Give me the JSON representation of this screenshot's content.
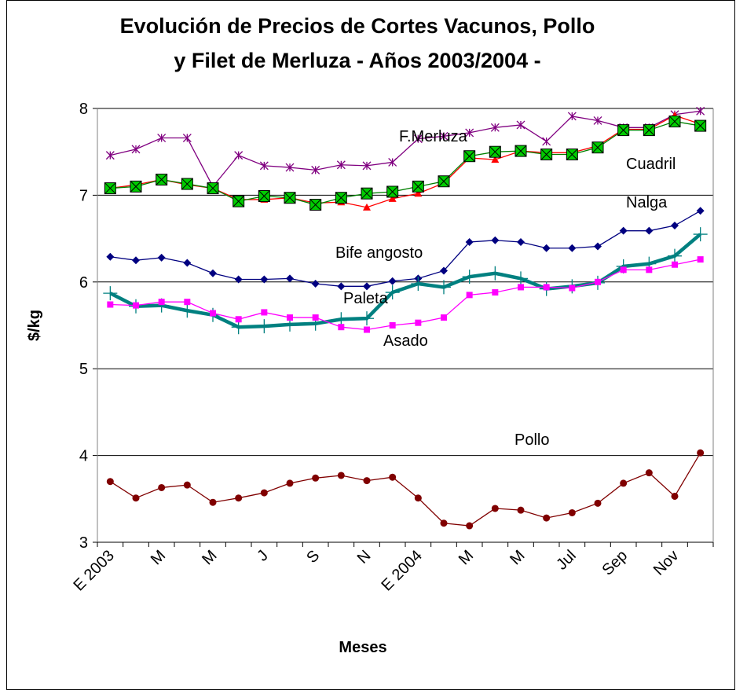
{
  "chart_data": {
    "type": "line",
    "title": [
      "Evolución de Precios de Cortes Vacunos, Pollo",
      "y Filet de Merluza - Años 2003/2004 -"
    ],
    "x_label": "Meses",
    "y_label": "$/kg",
    "categories": [
      "E 2003",
      null,
      "M",
      null,
      "M",
      null,
      "J",
      null,
      "S",
      null,
      "N",
      null,
      "E 2004",
      null,
      "M",
      null,
      "M",
      null,
      "Jul",
      null,
      "Sep",
      null,
      "Nov",
      null
    ],
    "ylim": [
      3,
      8
    ],
    "yticks": [
      3,
      4,
      5,
      6,
      7,
      8
    ],
    "grid": true,
    "series": [
      {
        "name": "F.Merluza",
        "color": "#800080",
        "marker": "asterisk",
        "values": [
          7.46,
          7.53,
          7.66,
          7.66,
          7.1,
          7.46,
          7.34,
          7.32,
          7.29,
          7.35,
          7.34,
          7.38,
          7.65,
          7.68,
          7.72,
          7.78,
          7.81,
          7.62,
          7.91,
          7.86,
          7.78,
          7.78,
          7.93,
          7.97
        ]
      },
      {
        "name": "Nalga",
        "color": "#ff0000",
        "marker": "triangle",
        "values": [
          7.08,
          7.12,
          7.18,
          7.12,
          7.08,
          6.95,
          6.95,
          6.97,
          6.91,
          6.92,
          6.86,
          6.96,
          7.02,
          7.14,
          7.43,
          7.41,
          7.51,
          7.49,
          7.49,
          7.57,
          7.76,
          7.76,
          7.92,
          7.82
        ]
      },
      {
        "name": "Cuadril",
        "color": "#008000",
        "marker": "xsquare",
        "values": [
          7.08,
          7.1,
          7.18,
          7.13,
          7.08,
          6.93,
          6.99,
          6.97,
          6.89,
          6.97,
          7.02,
          7.04,
          7.1,
          7.16,
          7.45,
          7.5,
          7.51,
          7.47,
          7.47,
          7.55,
          7.75,
          7.75,
          7.85,
          7.8
        ]
      },
      {
        "name": "Bife angosto",
        "color": "#000080",
        "marker": "diamond",
        "values": [
          6.29,
          6.25,
          6.28,
          6.22,
          6.1,
          6.03,
          6.03,
          6.04,
          5.98,
          5.95,
          5.95,
          6.01,
          6.04,
          6.13,
          6.46,
          6.48,
          6.46,
          6.39,
          6.39,
          6.41,
          6.59,
          6.59,
          6.65,
          6.82
        ]
      },
      {
        "name": "Paleta",
        "color": "#008080",
        "marker": "plus",
        "values": [
          5.87,
          5.72,
          5.73,
          5.67,
          5.62,
          5.48,
          5.49,
          5.51,
          5.52,
          5.57,
          5.58,
          5.88,
          5.98,
          5.94,
          6.06,
          6.1,
          6.04,
          5.92,
          5.95,
          5.99,
          6.18,
          6.21,
          6.3,
          6.55
        ]
      },
      {
        "name": "Asado",
        "color": "#ff00ff",
        "marker": "square",
        "values": [
          5.74,
          5.73,
          5.77,
          5.77,
          5.64,
          5.57,
          5.65,
          5.59,
          5.59,
          5.48,
          5.45,
          5.5,
          5.53,
          5.59,
          5.85,
          5.88,
          5.94,
          5.94,
          5.93,
          6.0,
          6.14,
          6.14,
          6.2,
          6.26
        ]
      },
      {
        "name": "Pollo",
        "color": "#800000",
        "marker": "circle",
        "values": [
          3.7,
          3.51,
          3.63,
          3.66,
          3.46,
          3.51,
          3.57,
          3.68,
          3.74,
          3.77,
          3.71,
          3.75,
          3.51,
          3.22,
          3.19,
          3.39,
          3.37,
          3.28,
          3.34,
          3.45,
          3.68,
          3.8,
          3.53,
          4.03
        ]
      }
    ]
  }
}
